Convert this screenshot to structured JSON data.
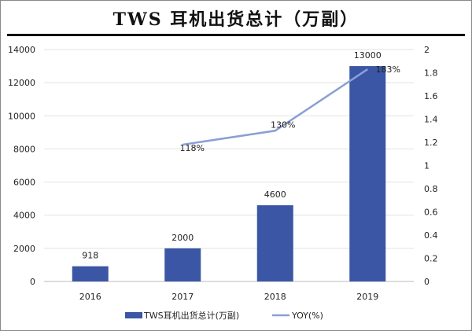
{
  "chart_data": {
    "type": "bar",
    "title": "TWS 耳机出货总计（万副）",
    "categories": [
      "2016",
      "2017",
      "2018",
      "2019"
    ],
    "series": [
      {
        "name": "TWS耳机出货总计(万副)",
        "type": "bar",
        "axis": "left",
        "values": [
          918,
          2000,
          4600,
          13000
        ],
        "labels": [
          "918",
          "2000",
          "4600",
          "13000"
        ],
        "color": "#3a56a4"
      },
      {
        "name": "YOY(%)",
        "type": "line",
        "axis": "right",
        "values": [
          null,
          1.18,
          1.3,
          1.83
        ],
        "labels": [
          "",
          "118%",
          "130%",
          "183%"
        ],
        "color": "#8b9fd6"
      }
    ],
    "left_axis": {
      "ylim": [
        0,
        14000
      ],
      "ticks": [
        "0",
        "2000",
        "4000",
        "6000",
        "8000",
        "10000",
        "12000",
        "14000"
      ]
    },
    "right_axis": {
      "ylim": [
        0,
        2
      ],
      "ticks": [
        "0",
        "0.2",
        "0.4",
        "0.6",
        "0.8",
        "1",
        "1.2",
        "1.4",
        "1.6",
        "1.8",
        "2"
      ]
    },
    "grid": true,
    "legend": "bottom"
  }
}
